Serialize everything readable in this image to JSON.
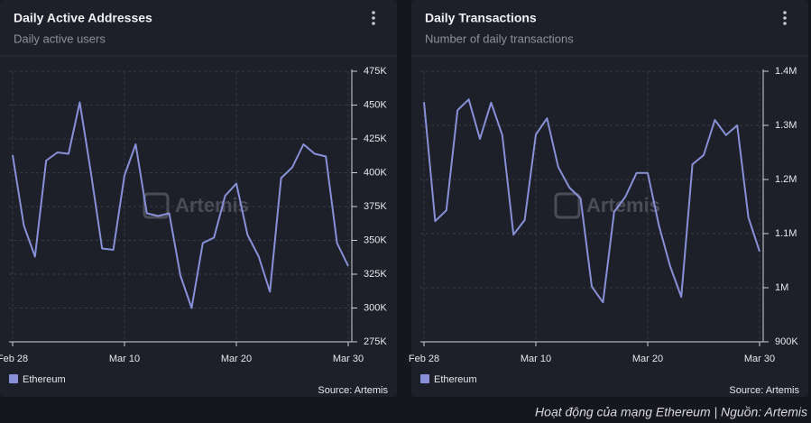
{
  "chart_data": [
    {
      "type": "line",
      "title": "Daily Active Addresses",
      "subtitle": "Daily active users",
      "watermark": "Artemis",
      "source": "Source: Artemis",
      "categories": [
        "Feb 28",
        null,
        null,
        null,
        null,
        null,
        null,
        null,
        null,
        null,
        "Mar 10",
        null,
        null,
        null,
        null,
        null,
        null,
        null,
        null,
        null,
        "Mar 20",
        null,
        null,
        null,
        null,
        null,
        null,
        null,
        null,
        null,
        "Mar 30"
      ],
      "series": [
        {
          "name": "Ethereum",
          "color": "#8890d8",
          "values": [
            413000,
            361000,
            338000,
            409000,
            415000,
            414000,
            452000,
            400000,
            344000,
            343000,
            398000,
            421000,
            370000,
            368000,
            370000,
            324000,
            300000,
            348000,
            352000,
            383000,
            392000,
            354000,
            338000,
            312000,
            396000,
            404000,
            421000,
            414000,
            412000,
            348000,
            331000
          ]
        }
      ],
      "ylim": [
        275000,
        475000
      ],
      "yticks": [
        {
          "value": 275000,
          "label": "275K"
        },
        {
          "value": 300000,
          "label": "300K"
        },
        {
          "value": 325000,
          "label": "325K"
        },
        {
          "value": 350000,
          "label": "350K"
        },
        {
          "value": 375000,
          "label": "375K"
        },
        {
          "value": 400000,
          "label": "400K"
        },
        {
          "value": 425000,
          "label": "425K"
        },
        {
          "value": 450000,
          "label": "450K"
        },
        {
          "value": 475000,
          "label": "475K"
        }
      ],
      "grid": true
    },
    {
      "type": "line",
      "title": "Daily Transactions",
      "subtitle": "Number of daily transactions",
      "watermark": "Artemis",
      "source": "Source: Artemis",
      "categories": [
        "Feb 28",
        null,
        null,
        null,
        null,
        null,
        null,
        null,
        null,
        null,
        "Mar 10",
        null,
        null,
        null,
        null,
        null,
        null,
        null,
        null,
        null,
        "Mar 20",
        null,
        null,
        null,
        null,
        null,
        null,
        null,
        null,
        null,
        "Mar 30"
      ],
      "series": [
        {
          "name": "Ethereum",
          "color": "#8890d8",
          "values": [
            1343000,
            1123000,
            1143000,
            1328000,
            1348000,
            1275000,
            1342000,
            1282000,
            1098000,
            1125000,
            1283000,
            1313000,
            1223000,
            1185000,
            1165000,
            1002000,
            973000,
            1140000,
            1168000,
            1212000,
            1212000,
            1115000,
            1040000,
            983000,
            1228000,
            1245000,
            1310000,
            1282000,
            1300000,
            1130000,
            1067000
          ]
        }
      ],
      "ylim": [
        900000,
        1400000
      ],
      "yticks": [
        {
          "value": 900000,
          "label": "900K"
        },
        {
          "value": 1000000,
          "label": "1M"
        },
        {
          "value": 1100000,
          "label": "1.1M"
        },
        {
          "value": 1200000,
          "label": "1.2M"
        },
        {
          "value": 1300000,
          "label": "1.3M"
        },
        {
          "value": 1400000,
          "label": "1.4M"
        }
      ],
      "grid": true
    }
  ],
  "caption": "Hoạt động của mạng Ethereum | Nguồn: Artemis"
}
